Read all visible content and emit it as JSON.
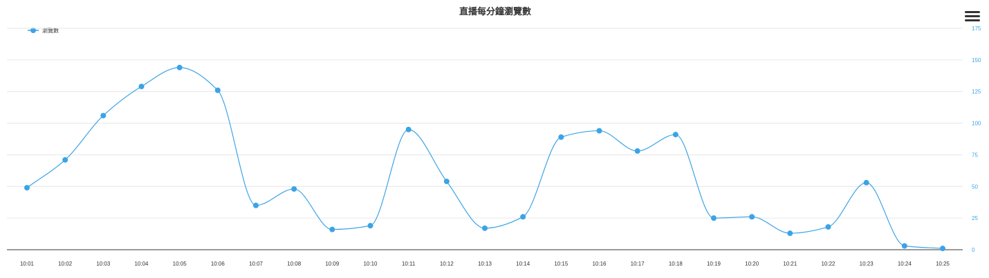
{
  "chart_data": {
    "type": "line",
    "title": "直播每分鐘瀏覽數",
    "categories": [
      "10:01",
      "10:02",
      "10:03",
      "10:04",
      "10:05",
      "10:06",
      "10:07",
      "10:08",
      "10:09",
      "10:10",
      "10:11",
      "10:12",
      "10:13",
      "10:14",
      "10:15",
      "10:16",
      "10:17",
      "10:18",
      "10:19",
      "10:20",
      "10:21",
      "10:22",
      "10:23",
      "10:24",
      "10:25"
    ],
    "series": [
      {
        "name": "瀏覽數",
        "values": [
          49,
          71,
          106,
          129,
          144,
          126,
          35,
          48,
          16,
          19,
          95,
          54,
          17,
          26,
          89,
          94,
          78,
          91,
          25,
          26,
          13,
          18,
          53,
          3,
          1
        ],
        "color": "#3ba3e6"
      }
    ],
    "ylim": [
      0,
      175
    ],
    "yticks": [
      "0",
      "25",
      "50",
      "75",
      "100",
      "125",
      "150",
      "175"
    ],
    "y_axis_side": "right",
    "grid": true,
    "legend": "top-left",
    "xlabel": "",
    "ylabel": ""
  },
  "colors": {
    "series": "#3ba3e6",
    "axis_label": "#3ba3e6",
    "grid": "#e6e6e6",
    "axis_line": "#333333",
    "text": "#333333"
  },
  "menu": {
    "icon": "hamburger-menu-icon"
  }
}
